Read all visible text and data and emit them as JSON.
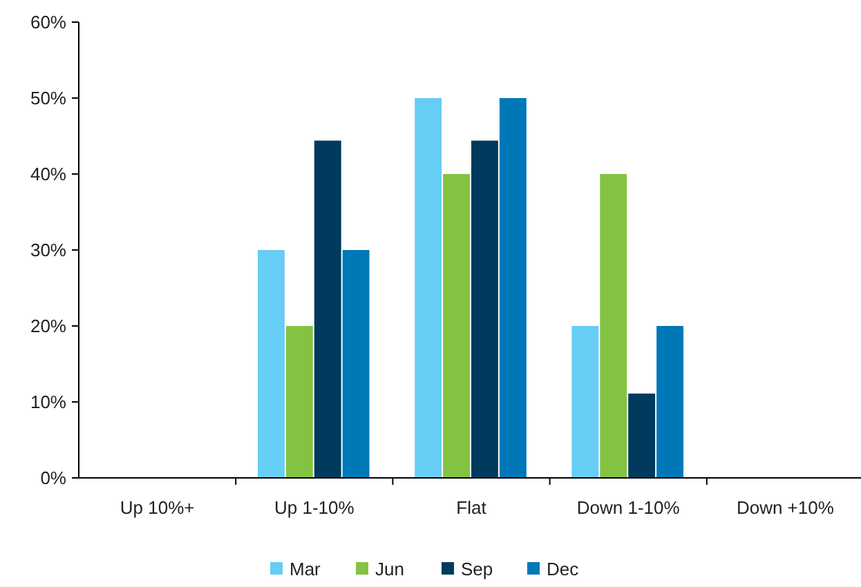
{
  "chart_data": {
    "type": "bar",
    "categories": [
      "Up 10%+",
      "Up 1-10%",
      "Flat",
      "Down 1-10%",
      "Down +10%"
    ],
    "series": [
      {
        "name": "Mar",
        "color": "#66cdf5",
        "values": [
          0,
          30,
          50,
          20,
          0
        ]
      },
      {
        "name": "Jun",
        "color": "#84c341",
        "values": [
          0,
          20,
          40,
          40,
          0
        ]
      },
      {
        "name": "Sep",
        "color": "#003a5c",
        "values": [
          0,
          44.4,
          44.4,
          11.1,
          0
        ]
      },
      {
        "name": "Dec",
        "color": "#0078b7",
        "values": [
          0,
          30,
          50,
          20,
          0
        ]
      }
    ],
    "ylim": [
      0,
      60
    ],
    "yticks": [
      {
        "value": 0,
        "label": "0%"
      },
      {
        "value": 10,
        "label": "10%"
      },
      {
        "value": 20,
        "label": "20%"
      },
      {
        "value": 30,
        "label": "30%"
      },
      {
        "value": 40,
        "label": "40%"
      },
      {
        "value": 50,
        "label": "50%"
      },
      {
        "value": 60,
        "label": "60%"
      }
    ],
    "grid": false,
    "legend": "bottom"
  }
}
